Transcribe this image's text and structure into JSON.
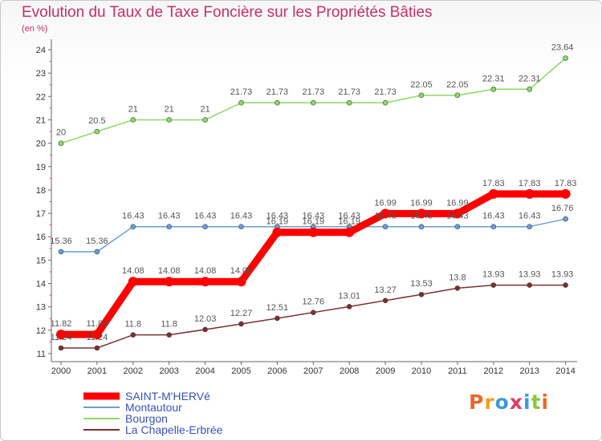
{
  "header": {
    "title": "Evolution du Taux de Taxe Foncière sur les Propriétés Bâties",
    "unit": "(en %)"
  },
  "logo": {
    "text": "Proxiti"
  },
  "chart_data": {
    "type": "line",
    "title": "Evolution du Taux de Taxe Foncière sur les Propriétés Bâties",
    "ylabel": "(en %)",
    "xlabel": "",
    "categories": [
      "2000",
      "2001",
      "2002",
      "2003",
      "2004",
      "2005",
      "2006",
      "2007",
      "2008",
      "2009",
      "2010",
      "2011",
      "2012",
      "2013",
      "2014"
    ],
    "y_ticks": [
      "11",
      "12",
      "13",
      "14",
      "15",
      "16",
      "17",
      "18",
      "19",
      "20",
      "21",
      "22",
      "23",
      "24"
    ],
    "ylim": [
      11,
      24
    ],
    "grid": false,
    "legend_position": "bottom-left",
    "series": [
      {
        "name": "SAINT-M'HERVé",
        "color": "#ff0000",
        "values": [
          11.82,
          11.82,
          14.08,
          14.08,
          14.08,
          14.08,
          16.19,
          16.19,
          16.19,
          16.99,
          16.99,
          16.99,
          17.83,
          17.83,
          17.83
        ],
        "labels": [
          "11.82",
          "11.82",
          "14.08",
          "14.08",
          "14.08",
          "14.08",
          "16.19",
          "16.19",
          "16.19",
          "16.99",
          "16.99",
          "16.99",
          "17.83",
          "17.83",
          "17.83"
        ]
      },
      {
        "name": "Montautour",
        "color": "#6a9fd0",
        "values": [
          15.36,
          15.36,
          16.43,
          16.43,
          16.43,
          16.43,
          16.43,
          16.43,
          16.43,
          16.43,
          16.43,
          16.43,
          16.43,
          16.43,
          16.76
        ],
        "labels": [
          "15.36",
          "15.36",
          "16.43",
          "16.43",
          "16.43",
          "16.43",
          "16.43",
          "16.43",
          "16.43",
          "16.43",
          "16.43",
          "16.43",
          "16.43",
          "16.43",
          "16.76"
        ]
      },
      {
        "name": "Bourgon",
        "color": "#8ed864",
        "values": [
          20,
          20.5,
          21,
          21,
          21,
          21.73,
          21.73,
          21.73,
          21.73,
          21.73,
          22.05,
          22.05,
          22.31,
          22.31,
          23.64
        ],
        "labels": [
          "20",
          "20.5",
          "21",
          "21",
          "21",
          "21.73",
          "21.73",
          "21.73",
          "21.73",
          "21.73",
          "22.05",
          "22.05",
          "22.31",
          "22.31",
          "23.64"
        ]
      },
      {
        "name": "La Chapelle-Erbrée",
        "color": "#7a3030",
        "values": [
          11.24,
          11.24,
          11.8,
          11.8,
          12.03,
          12.27,
          12.51,
          12.76,
          13.01,
          13.27,
          13.53,
          13.8,
          13.93,
          13.93,
          13.93
        ],
        "labels": [
          "11.24",
          "11.24",
          "11.8",
          "11.8",
          "12.03",
          "12.27",
          "12.51",
          "12.76",
          "13.01",
          "13.27",
          "13.53",
          "13.8",
          "13.93",
          "13.93",
          "13.93"
        ]
      }
    ]
  }
}
